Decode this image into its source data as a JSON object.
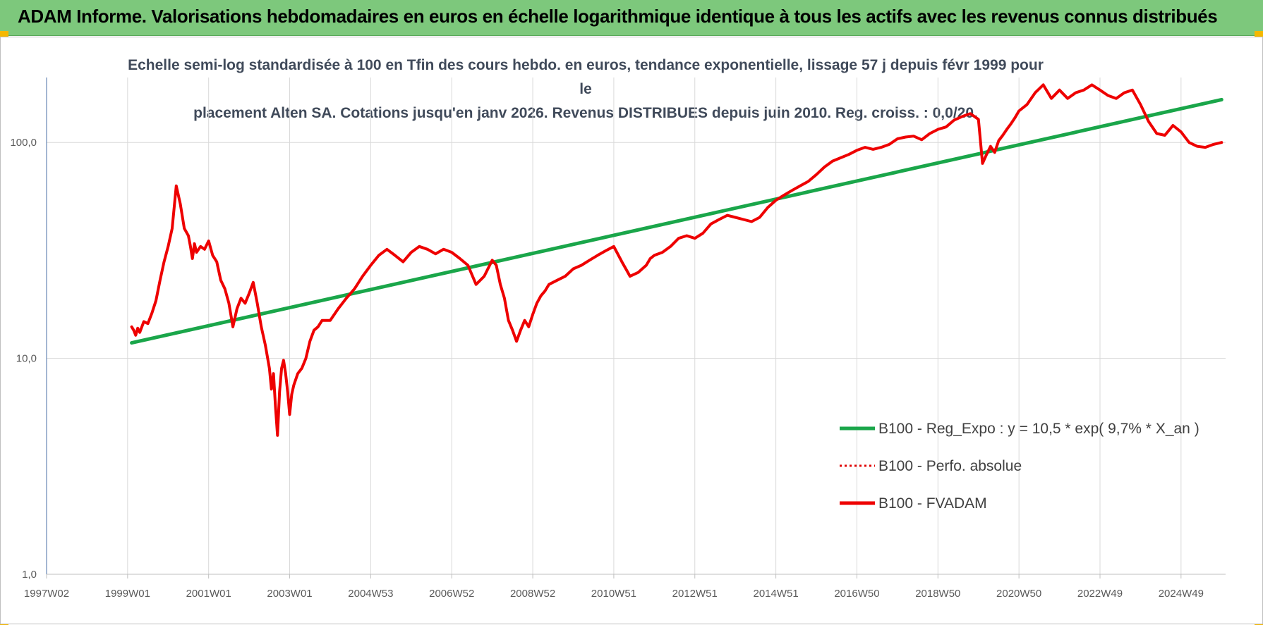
{
  "header": {
    "title": "ADAM Informe. Valorisations hebdomadaires en euros en échelle logarithmique identique à tous les actifs avec les revenus connus distribués"
  },
  "colors": {
    "header_bg": "#7dc87c",
    "corner_accent": "#f5b800",
    "trend": "#1aa64a",
    "perfo": "#e00000",
    "fvadam": "#ee0000",
    "grid": "#d9d9d9"
  },
  "chart_data": {
    "type": "line",
    "title_line1": "Echelle semi-log standardisée à 100 en Tfin des cours hebdo. en euros, tendance exponentielle, lissage 57 j depuis févr 1999 pour le",
    "title_line2": "placement Alten SA. Cotations jusqu'en janv 2026. Revenus DISTRIBUES depuis juin 2010. Reg. croiss. : 0,0/20.",
    "y_scale": "log",
    "ylim": [
      1,
      200
    ],
    "y_ticks": [
      {
        "value": 1,
        "label": "1,0"
      },
      {
        "value": 10,
        "label": "10,0"
      },
      {
        "value": 100,
        "label": "100,0"
      }
    ],
    "xlim": [
      1997.0,
      2026.1
    ],
    "x_ticks": [
      {
        "value": 1997.0,
        "label": "1997W02"
      },
      {
        "value": 1999.0,
        "label": "1999W01"
      },
      {
        "value": 2001.0,
        "label": "2001W01"
      },
      {
        "value": 2003.0,
        "label": "2003W01"
      },
      {
        "value": 2005.0,
        "label": "2004W53"
      },
      {
        "value": 2007.0,
        "label": "2006W52"
      },
      {
        "value": 2009.0,
        "label": "2008W52"
      },
      {
        "value": 2011.0,
        "label": "2010W51"
      },
      {
        "value": 2013.0,
        "label": "2012W51"
      },
      {
        "value": 2015.0,
        "label": "2014W51"
      },
      {
        "value": 2017.0,
        "label": "2016W50"
      },
      {
        "value": 2019.0,
        "label": "2018W50"
      },
      {
        "value": 2021.0,
        "label": "2020W50"
      },
      {
        "value": 2023.0,
        "label": "2022W49"
      },
      {
        "value": 2025.0,
        "label": "2024W49"
      }
    ],
    "grid": true,
    "legend_position": "bottom-right",
    "series": [
      {
        "name": "B100 - Reg_Expo : y = 10,5 * exp( 9,7% *  X_an )",
        "color": "#1aa64a",
        "style": "solid",
        "x": [
          1999.1,
          2026.0
        ],
        "y": [
          11.8,
          158
        ]
      },
      {
        "name": "B100 - Perfo. absolue",
        "color": "#e00000",
        "style": "dotted",
        "x": [],
        "y": []
      },
      {
        "name": "B100 - FVADAM",
        "color": "#ee0000",
        "style": "solid",
        "x": [
          1999.1,
          1999.15,
          1999.2,
          1999.25,
          1999.3,
          1999.4,
          1999.5,
          1999.6,
          1999.7,
          1999.8,
          1999.9,
          2000.0,
          2000.1,
          2000.2,
          2000.3,
          2000.4,
          2000.5,
          2000.55,
          2000.6,
          2000.65,
          2000.7,
          2000.8,
          2000.9,
          2001.0,
          2001.1,
          2001.2,
          2001.3,
          2001.4,
          2001.5,
          2001.6,
          2001.7,
          2001.8,
          2001.9,
          2002.0,
          2002.1,
          2002.2,
          2002.3,
          2002.4,
          2002.5,
          2002.55,
          2002.6,
          2002.65,
          2002.7,
          2002.75,
          2002.8,
          2002.85,
          2002.9,
          2002.95,
          2003.0,
          2003.05,
          2003.1,
          2003.2,
          2003.3,
          2003.4,
          2003.5,
          2003.6,
          2003.7,
          2003.8,
          2004.0,
          2004.2,
          2004.4,
          2004.6,
          2004.8,
          2005.0,
          2005.2,
          2005.4,
          2005.6,
          2005.8,
          2006.0,
          2006.2,
          2006.4,
          2006.6,
          2006.8,
          2007.0,
          2007.2,
          2007.4,
          2007.6,
          2007.8,
          2008.0,
          2008.1,
          2008.2,
          2008.3,
          2008.4,
          2008.5,
          2008.6,
          2008.7,
          2008.8,
          2008.9,
          2009.0,
          2009.1,
          2009.2,
          2009.3,
          2009.4,
          2009.6,
          2009.8,
          2010.0,
          2010.2,
          2010.4,
          2010.6,
          2010.8,
          2011.0,
          2011.2,
          2011.4,
          2011.6,
          2011.8,
          2011.9,
          2012.0,
          2012.2,
          2012.4,
          2012.6,
          2012.8,
          2013.0,
          2013.2,
          2013.4,
          2013.6,
          2013.8,
          2014.0,
          2014.2,
          2014.4,
          2014.6,
          2014.8,
          2015.0,
          2015.2,
          2015.4,
          2015.6,
          2015.8,
          2016.0,
          2016.2,
          2016.4,
          2016.6,
          2016.8,
          2017.0,
          2017.2,
          2017.4,
          2017.6,
          2017.8,
          2018.0,
          2018.2,
          2018.4,
          2018.6,
          2018.8,
          2019.0,
          2019.2,
          2019.4,
          2019.6,
          2019.8,
          2020.0,
          2020.1,
          2020.2,
          2020.3,
          2020.4,
          2020.5,
          2020.6,
          2020.7,
          2020.8,
          2020.9,
          2021.0,
          2021.2,
          2021.4,
          2021.6,
          2021.8,
          2022.0,
          2022.2,
          2022.4,
          2022.6,
          2022.8,
          2023.0,
          2023.2,
          2023.4,
          2023.6,
          2023.8,
          2024.0,
          2024.2,
          2024.4,
          2024.6,
          2024.8,
          2025.0,
          2025.2,
          2025.4,
          2025.6,
          2025.8,
          2026.0
        ],
        "y": [
          14.0,
          13.5,
          12.8,
          13.8,
          13.2,
          14.8,
          14.5,
          16.2,
          18.5,
          23.0,
          28.0,
          33.0,
          40.0,
          63.0,
          52.0,
          40.0,
          37.0,
          33.0,
          29.0,
          34.0,
          31.0,
          33.0,
          32.0,
          35.0,
          30.0,
          28.0,
          23.0,
          21.0,
          18.0,
          14.0,
          17.0,
          19.0,
          18.0,
          20.0,
          22.5,
          18.0,
          14.0,
          11.5,
          9.0,
          7.2,
          8.5,
          6.0,
          4.4,
          7.0,
          9.0,
          9.8,
          8.5,
          7.0,
          5.5,
          6.8,
          7.5,
          8.5,
          9.0,
          10.0,
          12.0,
          13.5,
          14.0,
          15.0,
          15.0,
          17.0,
          19.0,
          21.0,
          24.0,
          27.0,
          30.0,
          32.0,
          30.0,
          28.0,
          31.0,
          33.0,
          32.0,
          30.5,
          32.0,
          31.0,
          29.0,
          27.0,
          22.0,
          24.0,
          28.5,
          27.0,
          22.0,
          19.0,
          15.0,
          13.5,
          12.0,
          13.5,
          15.0,
          14.0,
          16.0,
          18.0,
          19.5,
          20.5,
          22.0,
          23.0,
          24.0,
          26.0,
          27.0,
          28.5,
          30.0,
          31.5,
          33.0,
          28.0,
          24.0,
          25.0,
          27.0,
          29.0,
          30.0,
          31.0,
          33.0,
          36.0,
          37.0,
          36.0,
          38.0,
          42.0,
          44.0,
          46.0,
          45.0,
          44.0,
          43.0,
          45.0,
          50.0,
          54.0,
          57.0,
          60.0,
          63.0,
          66.0,
          71.0,
          77.0,
          82.0,
          85.0,
          88.0,
          92.0,
          95.0,
          93.0,
          95.0,
          98.0,
          104.0,
          106.0,
          107.0,
          103.0,
          110.0,
          115.0,
          118.0,
          127.0,
          132.0,
          136.0,
          128.0,
          80.0,
          88.0,
          96.0,
          90.0,
          102.0,
          108.0,
          115.0,
          122.0,
          130.0,
          140.0,
          150.0,
          170.0,
          185.0,
          160.0,
          175.0,
          160.0,
          170.0,
          175.0,
          185.0,
          175.0,
          165.0,
          160.0,
          170.0,
          175.0,
          150.0,
          125.0,
          110.0,
          108.0,
          120.0,
          112.0,
          100.0,
          96.0,
          95.0,
          98.0,
          100.0
        ]
      }
    ]
  }
}
